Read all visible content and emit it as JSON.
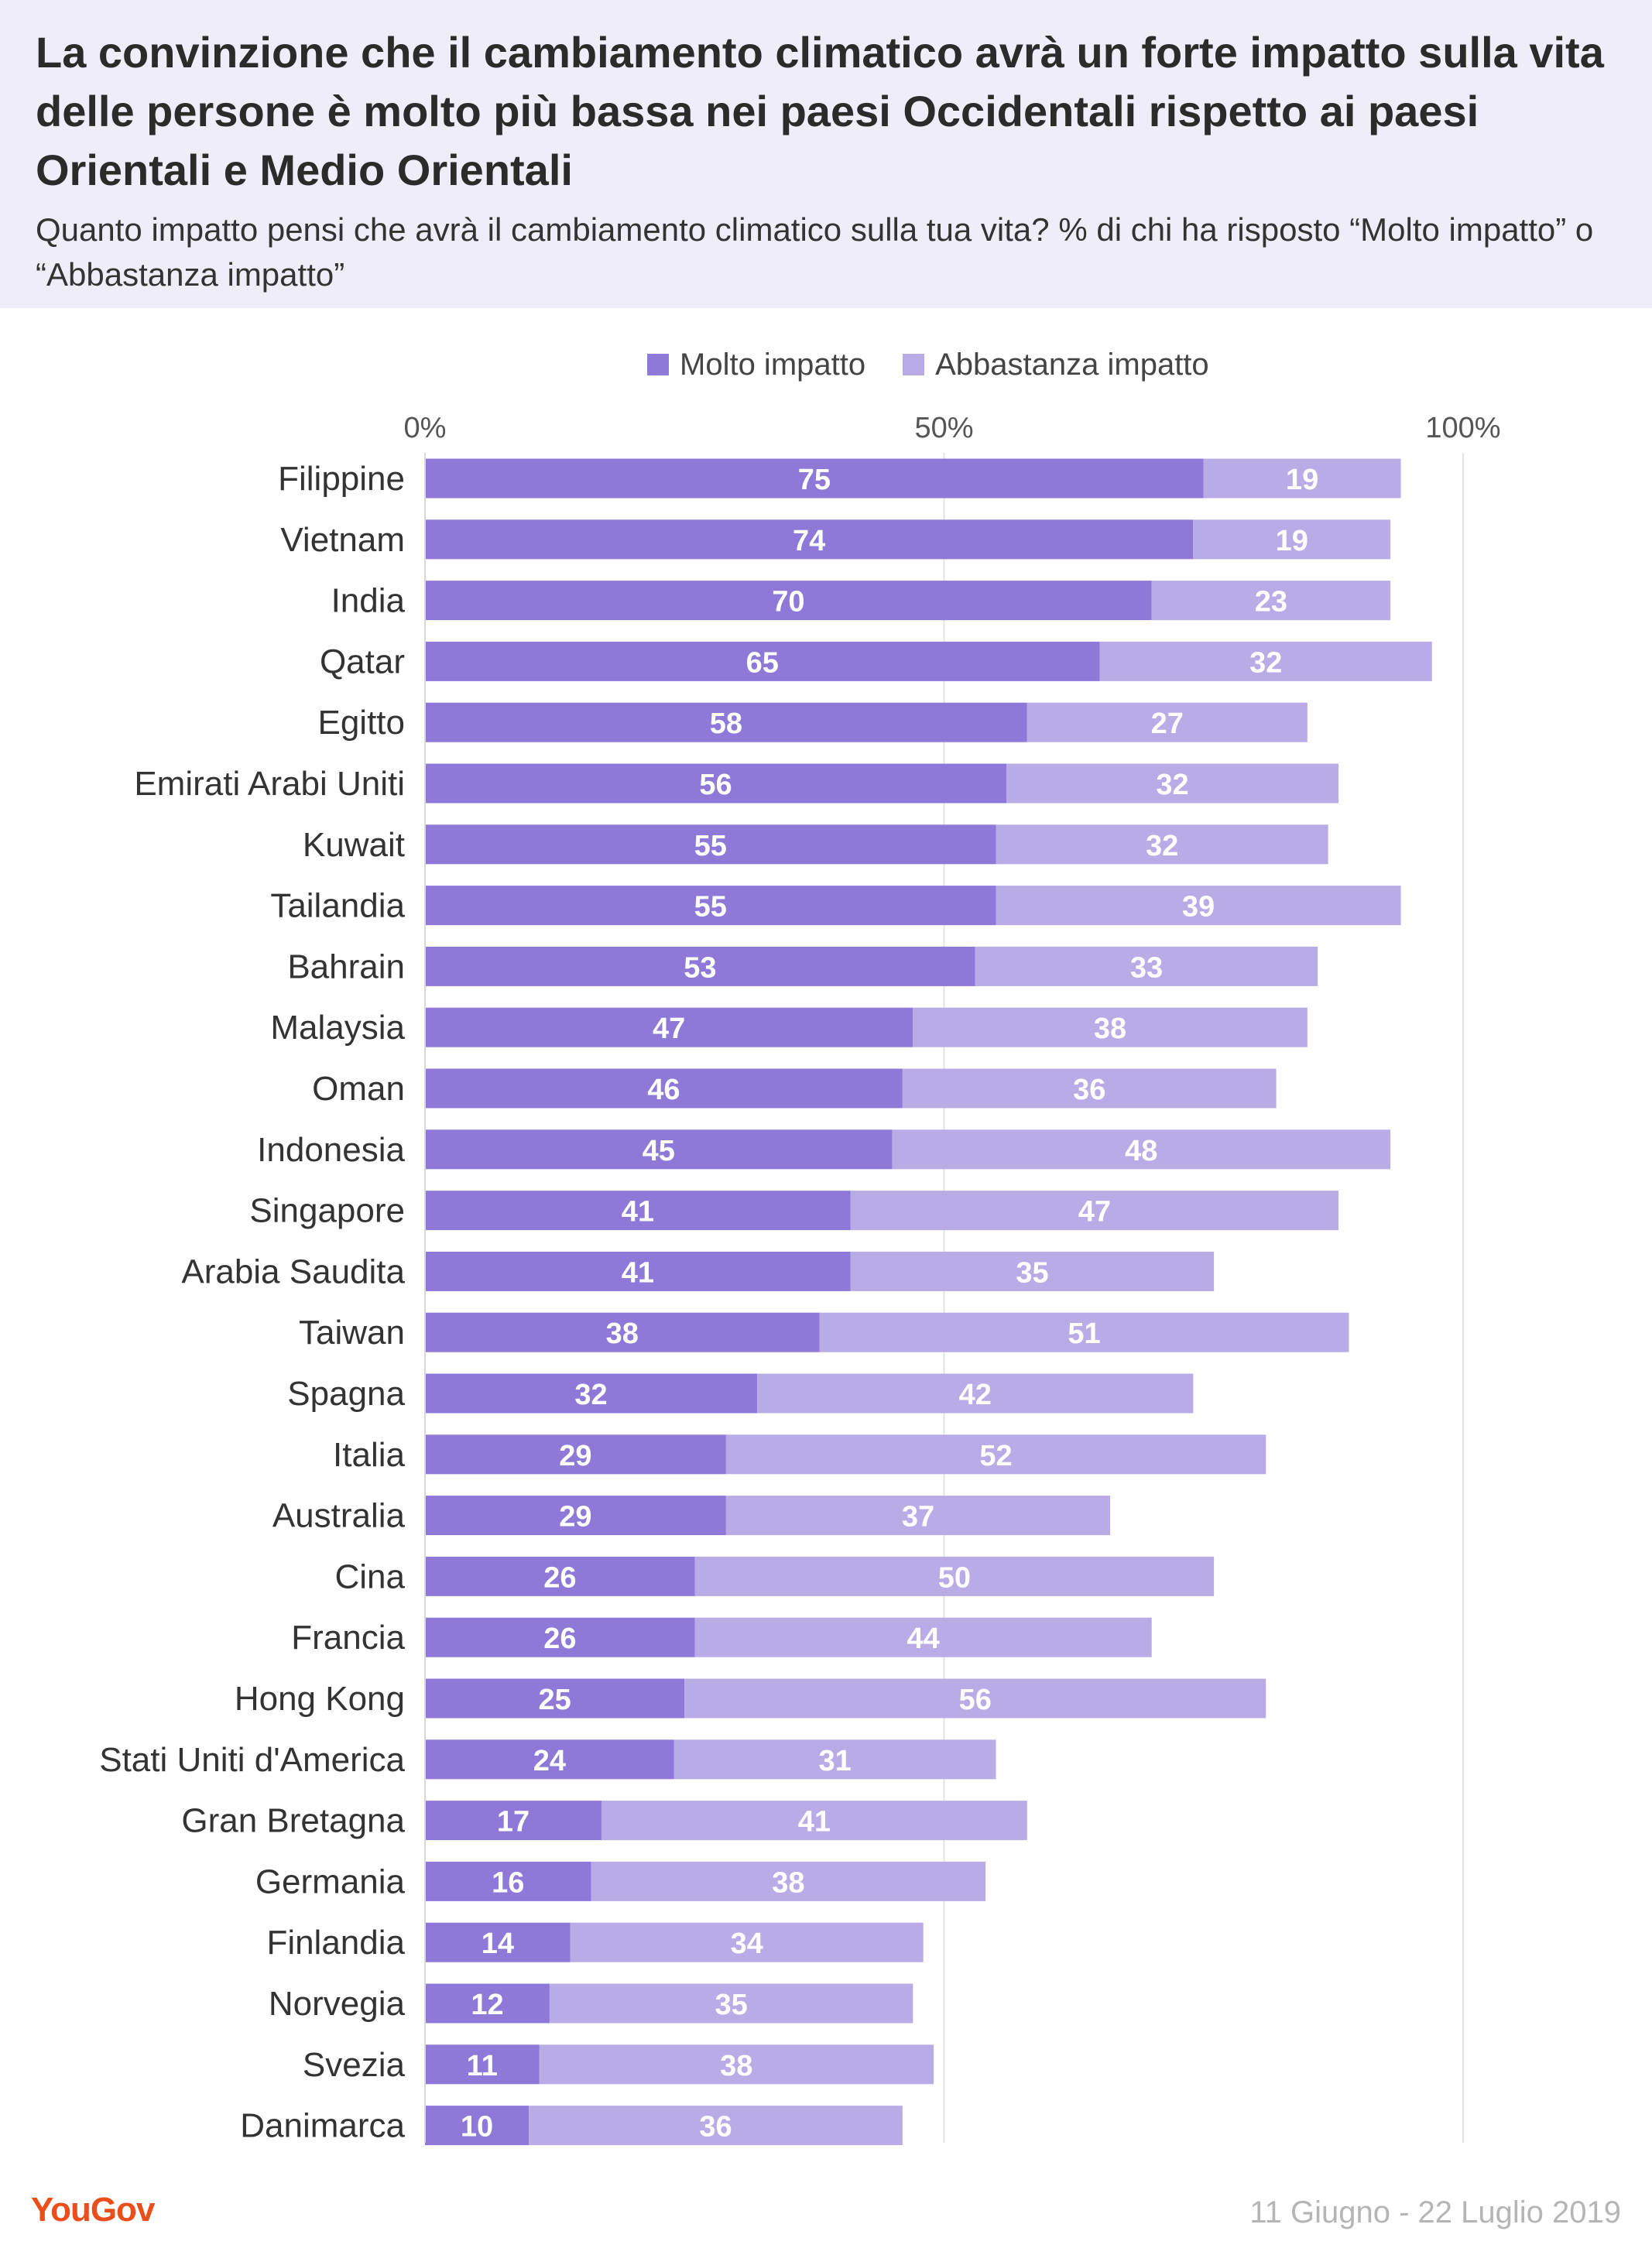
{
  "title": "La convinzione che il cambiamento climatico avrà un forte impatto sulla vita delle persone è molto più bassa nei paesi Occidentali rispetto ai paesi Orientali e Medio Orientali",
  "subtitle": "Quanto impatto pensi che avrà il cambiamento climatico sulla tua vita? % di chi ha risposto “Molto impatto” o “Abbastanza impatto”",
  "footer": {
    "logo": "YouGov",
    "date": "11 Giugno - 22 Luglio 2019"
  },
  "colors": {
    "header_bg": "#efedf8",
    "series_1": "#8e78d8",
    "series_2": "#b9ace6",
    "grid": "#e3e3e3",
    "brand": "#e94e1b"
  },
  "chart_data": {
    "type": "bar",
    "orientation": "horizontal",
    "stacked": true,
    "categories": [
      "Filippine",
      "Vietnam",
      "India",
      "Qatar",
      "Egitto",
      "Emirati Arabi Uniti",
      "Kuwait",
      "Tailandia",
      "Bahrain",
      "Malaysia",
      "Oman",
      "Indonesia",
      "Singapore",
      "Arabia Saudita",
      "Taiwan",
      "Spagna",
      "Italia",
      "Australia",
      "Cina",
      "Francia",
      "Hong Kong",
      "Stati Uniti d'America",
      "Gran Bretagna",
      "Germania",
      "Finlandia",
      "Norvegia",
      "Svezia",
      "Danimarca"
    ],
    "series": [
      {
        "name": "Molto impatto",
        "color": "#8e78d8",
        "values": [
          75,
          74,
          70,
          65,
          58,
          56,
          55,
          55,
          53,
          47,
          46,
          45,
          41,
          41,
          38,
          32,
          29,
          29,
          26,
          26,
          25,
          24,
          17,
          16,
          14,
          12,
          11,
          10
        ]
      },
      {
        "name": "Abbastanza impatto",
        "color": "#b9ace6",
        "values": [
          19,
          19,
          23,
          32,
          27,
          32,
          32,
          39,
          33,
          38,
          36,
          48,
          47,
          35,
          51,
          42,
          52,
          37,
          50,
          44,
          56,
          31,
          41,
          38,
          34,
          35,
          38,
          36
        ]
      }
    ],
    "x_ticks": [
      "0%",
      "50%",
      "100%"
    ],
    "xlim": [
      0,
      100
    ],
    "grid": true,
    "legend": "top"
  }
}
